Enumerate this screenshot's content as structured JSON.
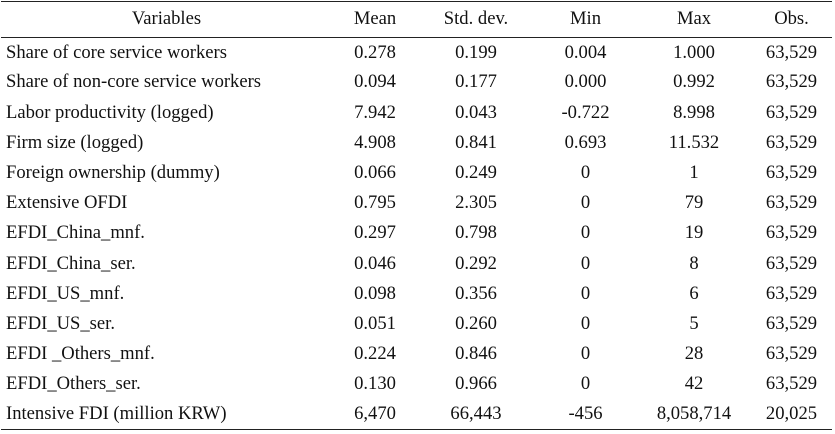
{
  "table": {
    "headers": {
      "variables": "Variables",
      "mean": "Mean",
      "std_dev": "Std. dev.",
      "min": "Min",
      "max": "Max",
      "obs": "Obs."
    },
    "rows": [
      {
        "variable": "Share of core service workers",
        "mean": "0.278",
        "std_dev": "0.199",
        "min": "0.004",
        "max": "1.000",
        "obs": "63,529"
      },
      {
        "variable": "Share of non-core service workers",
        "mean": "0.094",
        "std_dev": "0.177",
        "min": "0.000",
        "max": "0.992",
        "obs": "63,529"
      },
      {
        "variable": "Labor productivity (logged)",
        "mean": "7.942",
        "std_dev": "0.043",
        "min": "-0.722",
        "max": "8.998",
        "obs": "63,529"
      },
      {
        "variable": "Firm size (logged)",
        "mean": "4.908",
        "std_dev": "0.841",
        "min": "0.693",
        "max": "11.532",
        "obs": "63,529"
      },
      {
        "variable": "Foreign ownership (dummy)",
        "mean": "0.066",
        "std_dev": "0.249",
        "min": "0",
        "max": "1",
        "obs": "63,529"
      },
      {
        "variable": "Extensive OFDI",
        "mean": "0.795",
        "std_dev": "2.305",
        "min": "0",
        "max": "79",
        "obs": "63,529"
      },
      {
        "variable": "EFDI_China_mnf.",
        "mean": "0.297",
        "std_dev": "0.798",
        "min": "0",
        "max": "19",
        "obs": "63,529"
      },
      {
        "variable": "EFDI_China_ser.",
        "mean": "0.046",
        "std_dev": "0.292",
        "min": "0",
        "max": "8",
        "obs": "63,529"
      },
      {
        "variable": "EFDI_US_mnf.",
        "mean": "0.098",
        "std_dev": "0.356",
        "min": "0",
        "max": "6",
        "obs": "63,529"
      },
      {
        "variable": "EFDI_US_ser.",
        "mean": "0.051",
        "std_dev": "0.260",
        "min": "0",
        "max": "5",
        "obs": "63,529"
      },
      {
        "variable": "EFDI _Others_mnf.",
        "mean": "0.224",
        "std_dev": "0.846",
        "min": "0",
        "max": "28",
        "obs": "63,529"
      },
      {
        "variable": "EFDI_Others_ser.",
        "mean": "0.130",
        "std_dev": "0.966",
        "min": "0",
        "max": "42",
        "obs": "63,529"
      },
      {
        "variable": "Intensive FDI (million KRW)",
        "mean": "6,470",
        "std_dev": "66,443",
        "min": "-456",
        "max": "8,058,714",
        "obs": "20,025"
      }
    ]
  }
}
